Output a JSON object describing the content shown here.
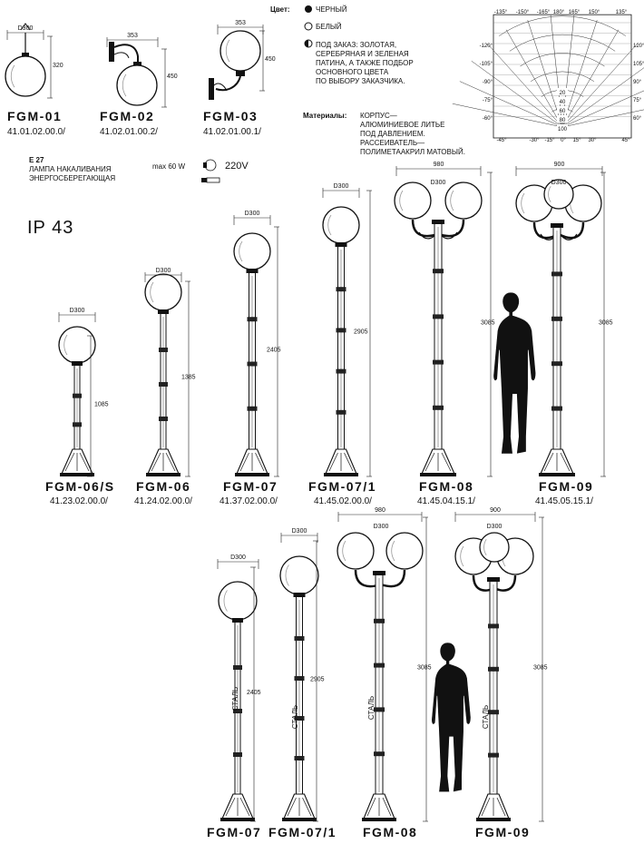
{
  "top_models": [
    {
      "name": "FGM-01",
      "article": "41.01.02.00.0/",
      "d": "D300",
      "h": "320"
    },
    {
      "name": "FGM-02",
      "article": "41.02.01.00.2/",
      "d": "353",
      "h": "450"
    },
    {
      "name": "FGM-03",
      "article": "41.02.01.00.1/",
      "d": "353",
      "h": "450"
    }
  ],
  "color": {
    "label": "Цвет:",
    "black": "ЧЕРНЫЙ",
    "white": "БЕЛЫЙ",
    "order_lines": [
      "ПОД ЗАКАЗ: ЗОЛОТАЯ,",
      "СЕРЕБРЯНАЯ И ЗЕЛЕНАЯ",
      "ПАТИНА, А ТАКЖЕ ПОДБОР",
      "ОСНОВНОГО ЦВЕТА",
      "ПО ВЫБОРУ ЗАКАЗЧИКА."
    ]
  },
  "materials": {
    "label": "Материалы:",
    "lines": [
      "КОРПУС—",
      "АЛЮМИНИЕВОЕ ЛИТЬЕ",
      "ПОД ДАВЛЕНИЕМ.",
      "РАССЕИВАТЕЛЬ—",
      "ПОЛИМЕТААКРИЛ МАТОВЫЙ."
    ]
  },
  "lamp": {
    "socket": "E 27",
    "line1": "ЛАМПА НАКАЛИВАНИЯ",
    "line2": "ЭНЕРГОСБЕРЕГАЮЩАЯ",
    "power": "max 60 W",
    "voltage": "220V"
  },
  "ip": "IP 43",
  "diagram": {
    "top_angles": [
      "-135°",
      "-150°",
      "-165°",
      "180°",
      "165°",
      "150°",
      "135°"
    ],
    "left_angles": [
      "-120°",
      "-105°",
      "-90°",
      "-75°",
      "-60°"
    ],
    "right_angles": [
      "120°",
      "105°",
      "90°",
      "75°",
      "60°"
    ],
    "bottom_angles": [
      "-45°",
      "-30°",
      "-15°",
      "0°",
      "15°",
      "30°",
      "45°"
    ],
    "rings": [
      "20",
      "40",
      "60",
      "80",
      "100"
    ]
  },
  "row2": [
    {
      "name": "FGM-06/S",
      "article": "41.23.02.00.0/",
      "d": "D300",
      "h": "1085"
    },
    {
      "name": "FGM-06",
      "article": "41.24.02.00.0/",
      "d": "D300",
      "h": "1385"
    },
    {
      "name": "FGM-07",
      "article": "41.37.02.00.0/",
      "d": "D300",
      "h": "2405"
    },
    {
      "name": "FGM-07/1",
      "article": "41.45.02.00.0/",
      "d": "D300",
      "h": "2905"
    },
    {
      "name": "FGM-08",
      "article": "41.45.04.15.1/",
      "w": "980",
      "d": "D300",
      "h": "3085"
    },
    {
      "name": "FGM-09",
      "article": "41.45.05.15.1/",
      "w": "900",
      "d": "D300",
      "h": "3085"
    }
  ],
  "row3": [
    {
      "name": "FGM-07",
      "d": "D300",
      "h": "2405",
      "material": "СТАЛЬ"
    },
    {
      "name": "FGM-07/1",
      "d": "D300",
      "h": "2905",
      "material": "СТАЛЬ"
    },
    {
      "name": "FGM-08",
      "w": "980",
      "d": "D300",
      "h": "3085",
      "material": "СТАЛЬ"
    },
    {
      "name": "FGM-09",
      "w": "900",
      "d": "D300",
      "h": "3085",
      "material": "СТАЛЬ"
    }
  ]
}
